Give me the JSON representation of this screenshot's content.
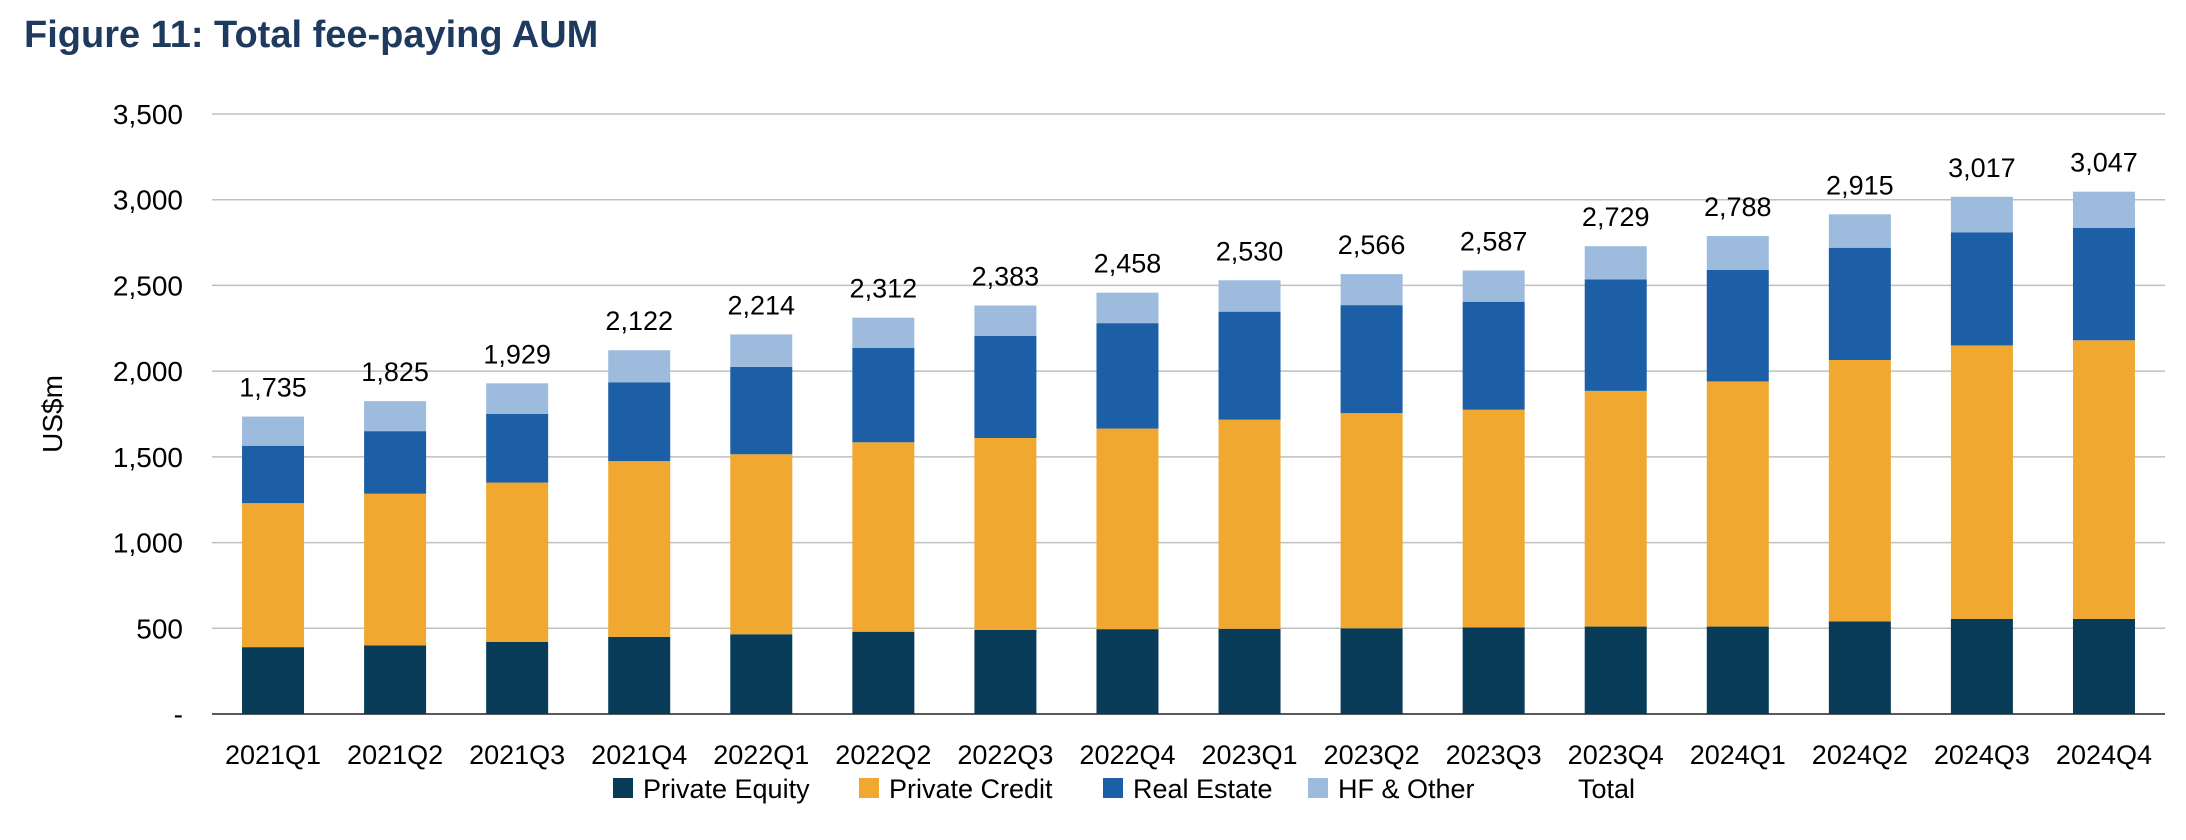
{
  "title": "Figure 11: Total fee-paying AUM",
  "colors": {
    "private_equity": "#073B57",
    "private_credit": "#F0A830",
    "real_estate": "#1D5FA6",
    "hf_other": "#9DBCDD",
    "grid": "#BFBFBF"
  },
  "chart_data": {
    "type": "bar",
    "stacked": true,
    "ylabel": "US$m",
    "ylim": [
      0,
      3500
    ],
    "yticks": [
      "-",
      "500",
      "1,000",
      "1,500",
      "2,000",
      "2,500",
      "3,000",
      "3,500"
    ],
    "grid": true,
    "legend_position": "bottom",
    "categories": [
      "2021Q1",
      "2021Q2",
      "2021Q3",
      "2021Q4",
      "2022Q1",
      "2022Q2",
      "2022Q3",
      "2022Q4",
      "2023Q1",
      "2023Q2",
      "2023Q3",
      "2023Q4",
      "2024Q1",
      "2024Q2",
      "2024Q3",
      "2024Q4"
    ],
    "series": [
      {
        "name": "Private Equity",
        "color": "#073B57",
        "values": [
          390,
          400,
          420,
          450,
          465,
          480,
          490,
          495,
          497,
          500,
          505,
          510,
          510,
          540,
          555,
          555
        ]
      },
      {
        "name": "Private Credit",
        "color": "#F0A830",
        "values": [
          840,
          885,
          930,
          1025,
          1050,
          1105,
          1120,
          1170,
          1220,
          1255,
          1270,
          1375,
          1430,
          1525,
          1595,
          1625
        ]
      },
      {
        "name": "Real Estate",
        "color": "#1D5FA6",
        "values": [
          335,
          365,
          400,
          460,
          510,
          550,
          595,
          615,
          630,
          630,
          630,
          650,
          650,
          655,
          660,
          655
        ]
      },
      {
        "name": "HF & Other",
        "color": "#9DBCDD",
        "values": [
          170,
          175,
          179,
          187,
          189,
          177,
          178,
          178,
          183,
          181,
          182,
          194,
          198,
          195,
          207,
          212
        ]
      }
    ],
    "totals_series_name": "Total",
    "totals": [
      1735,
      1825,
      1929,
      2122,
      2214,
      2312,
      2383,
      2458,
      2530,
      2566,
      2587,
      2729,
      2788,
      2915,
      3017,
      3047
    ],
    "total_labels": [
      "1,735",
      "1,825",
      "1,929",
      "2,122",
      "2,214",
      "2,312",
      "2,383",
      "2,458",
      "2,530",
      "2,566",
      "2,587",
      "2,729",
      "2,788",
      "2,915",
      "3,017",
      "3,047"
    ]
  }
}
